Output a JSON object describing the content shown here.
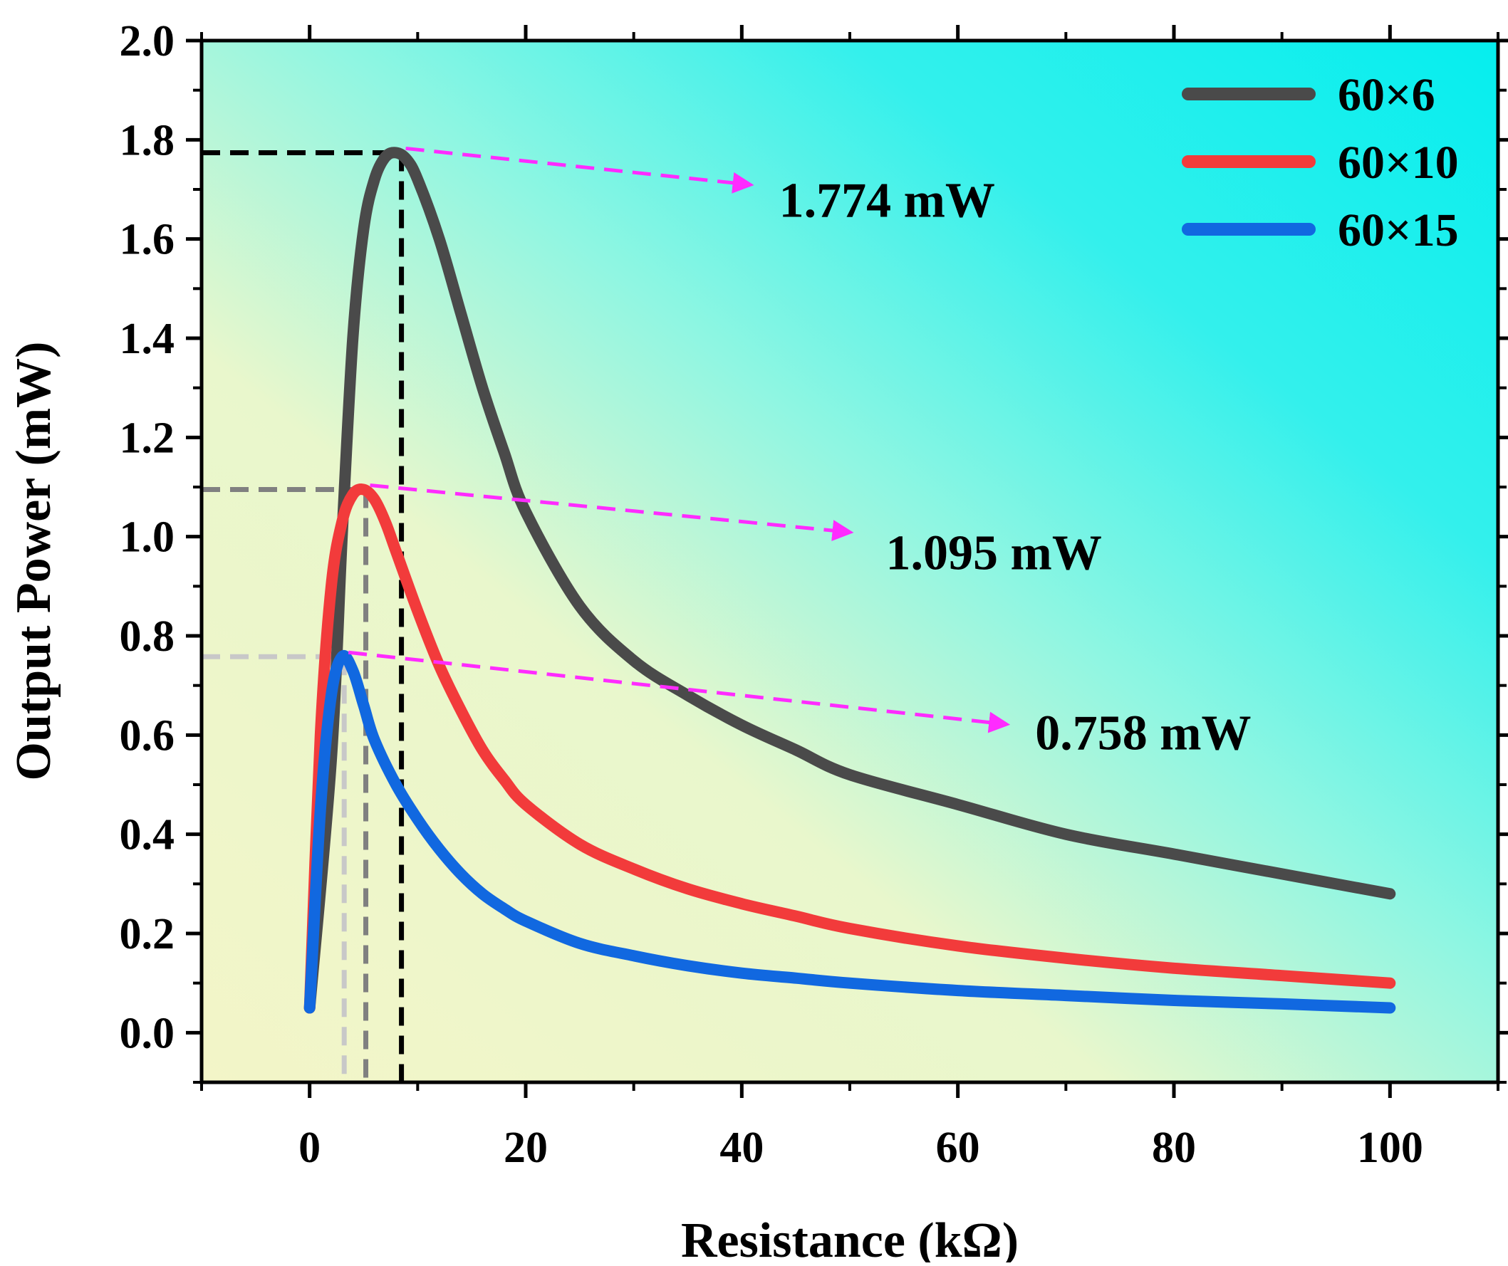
{
  "chart_data": {
    "type": "line",
    "xlabel": "Resistance (kΩ)",
    "ylabel": "Output Power  (mW)",
    "xlim": [
      -10,
      110
    ],
    "ylim": [
      -0.1,
      2.0
    ],
    "x_ticks": [
      0,
      20,
      40,
      60,
      80,
      100
    ],
    "y_ticks": [
      0.0,
      0.2,
      0.4,
      0.6,
      0.8,
      1.0,
      1.2,
      1.4,
      1.6,
      1.8,
      2.0
    ],
    "x_tick_labels": [
      "0",
      "20",
      "40",
      "60",
      "80",
      "100"
    ],
    "y_tick_labels": [
      "0.0",
      "0.2",
      "0.4",
      "0.6",
      "0.8",
      "1.0",
      "1.2",
      "1.4",
      "1.6",
      "1.8",
      "2.0"
    ],
    "grid": false,
    "legend_position": "top-right",
    "background": {
      "left_bottom": "#f3f5c8",
      "right_top": "#05eeee"
    },
    "series": [
      {
        "name": "60×6",
        "color": "#4a4a4a",
        "x": [
          0,
          2,
          3,
          4,
          5,
          6,
          7,
          8,
          9,
          10,
          12,
          14,
          16,
          18,
          20,
          25,
          30,
          35,
          40,
          45,
          50,
          60,
          70,
          80,
          90,
          100
        ],
        "y": [
          0.05,
          0.55,
          1.0,
          1.4,
          1.62,
          1.72,
          1.765,
          1.774,
          1.76,
          1.72,
          1.6,
          1.45,
          1.3,
          1.17,
          1.05,
          0.86,
          0.75,
          0.68,
          0.62,
          0.57,
          0.52,
          0.46,
          0.4,
          0.36,
          0.32,
          0.28
        ]
      },
      {
        "name": "60×10",
        "color": "#f23b3b",
        "x": [
          0,
          1,
          2,
          3,
          4,
          5,
          6,
          7,
          8,
          10,
          12,
          14,
          16,
          18,
          20,
          25,
          30,
          35,
          40,
          45,
          50,
          60,
          70,
          80,
          90,
          100
        ],
        "y": [
          0.05,
          0.6,
          0.9,
          1.03,
          1.085,
          1.095,
          1.075,
          1.03,
          0.97,
          0.85,
          0.74,
          0.65,
          0.57,
          0.51,
          0.46,
          0.38,
          0.33,
          0.29,
          0.26,
          0.235,
          0.21,
          0.175,
          0.15,
          0.13,
          0.115,
          0.1
        ]
      },
      {
        "name": "60×15",
        "color": "#1168e0",
        "x": [
          0,
          1,
          2,
          3,
          4,
          5,
          6,
          8,
          10,
          12,
          14,
          16,
          18,
          20,
          25,
          30,
          35,
          40,
          45,
          50,
          60,
          70,
          80,
          90,
          100
        ],
        "y": [
          0.05,
          0.45,
          0.68,
          0.758,
          0.73,
          0.66,
          0.59,
          0.5,
          0.43,
          0.37,
          0.32,
          0.28,
          0.25,
          0.225,
          0.18,
          0.155,
          0.135,
          0.12,
          0.11,
          0.1,
          0.085,
          0.075,
          0.065,
          0.058,
          0.05
        ]
      }
    ],
    "annotations": [
      {
        "text": "1.774 mW",
        "peak_x": 8.5,
        "peak_y": 1.774,
        "arrow_color": "#ff2bff",
        "guide_color": "#000000"
      },
      {
        "text": "1.095 mW",
        "peak_x": 5.2,
        "peak_y": 1.095,
        "arrow_color": "#ff2bff",
        "guide_color": "#808080"
      },
      {
        "text": "0.758 mW",
        "peak_x": 3.2,
        "peak_y": 0.758,
        "arrow_color": "#ff2bff",
        "guide_color": "#c8c8c8"
      }
    ]
  }
}
